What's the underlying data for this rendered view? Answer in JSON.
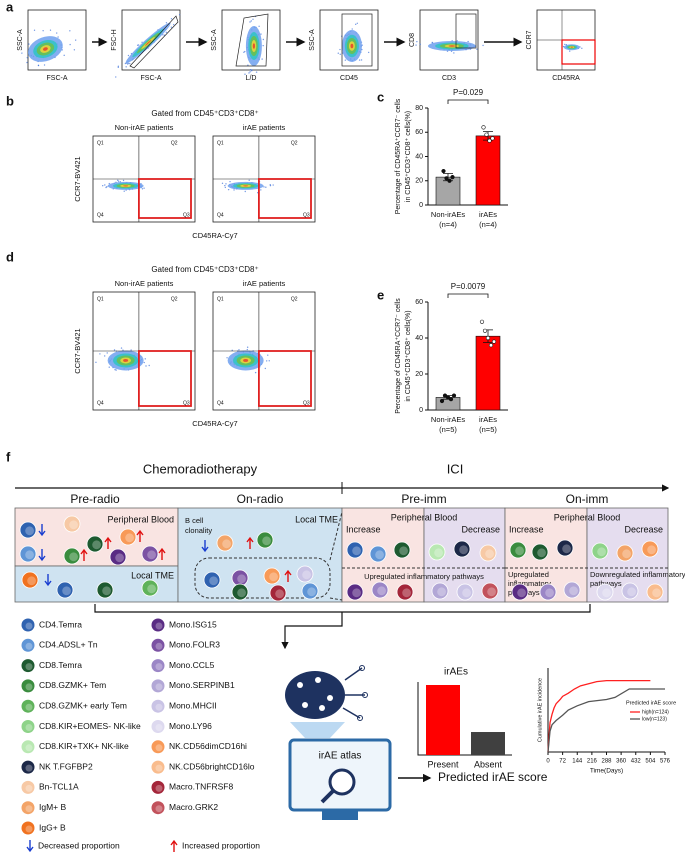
{
  "panel_a": {
    "label": "a",
    "plots": [
      {
        "x_label": "FSC-A",
        "y_label": "SSC-A"
      },
      {
        "x_label": "FSC-A",
        "y_label": "FSC-H"
      },
      {
        "x_label": "L/D",
        "y_label": "SSC-A"
      },
      {
        "x_label": "CD45",
        "y_label": "SSC-A"
      },
      {
        "x_label": "CD3",
        "y_label": "CD8"
      },
      {
        "x_label": "CD45RA",
        "y_label": "CCR7"
      }
    ]
  },
  "panel_b": {
    "label": "b",
    "gate_title": "Gated from CD45⁺CD3⁺CD8⁺",
    "groups": [
      "Non-irAE patients",
      "irAE patients"
    ],
    "y_label": "CCR7-BV421",
    "x_label": "CD45RA-Cy7",
    "quadrants": [
      "Q1",
      "Q2",
      "Q4",
      "Q3"
    ]
  },
  "panel_c": {
    "type": "bar",
    "label": "c",
    "p_value": "P=0.029",
    "y_label": [
      "Percentage of CD45RA⁺CCR7⁻ cells",
      "in CD45⁺CD3⁺CD8⁺ cells(%)"
    ],
    "categories": [
      [
        "Non-irAEs",
        "(n=4)"
      ],
      [
        "irAEs",
        "(n=4)"
      ]
    ],
    "values": [
      23,
      57
    ],
    "errors": [
      3,
      3.5
    ],
    "points": [
      [
        28,
        22,
        20,
        23
      ],
      [
        64,
        58,
        53,
        55
      ]
    ],
    "colors": [
      "#a6a6a6",
      "#ff0000"
    ],
    "ylim": [
      0,
      80
    ],
    "yticks": [
      0,
      20,
      40,
      60,
      80
    ]
  },
  "panel_d": {
    "label": "d",
    "gate_title": "Gated from CD45⁺CD3⁺CD8⁺",
    "groups": [
      "Non-irAE patients",
      "irAE patients"
    ],
    "y_label": "CCR7-BV421",
    "x_label": "CD45RA-Cy7",
    "quadrants": [
      "Q1",
      "Q2",
      "Q4",
      "Q3"
    ]
  },
  "panel_e": {
    "type": "bar",
    "label": "e",
    "p_value": "P=0.0079",
    "y_label": [
      "Percentage of CD45RA⁺CCR7⁻ cells",
      "in CD45⁺CD3⁺CD8⁺ cells(%)"
    ],
    "categories": [
      [
        "Non-irAEs",
        "(n=5)"
      ],
      [
        "irAEs",
        "(n=5)"
      ]
    ],
    "values": [
      7,
      41
    ],
    "errors": [
      1,
      3.5
    ],
    "points": [
      [
        5,
        8,
        7,
        6,
        8
      ],
      [
        49,
        44,
        40,
        36,
        38
      ]
    ],
    "colors": [
      "#a6a6a6",
      "#ff0000"
    ],
    "ylim": [
      0,
      60
    ],
    "yticks": [
      0,
      20,
      40,
      60
    ]
  },
  "panel_f": {
    "label": "f",
    "phases": [
      "Chemoradiotherapy",
      "ICI"
    ],
    "stages": [
      "Pre-radio",
      "On-radio",
      "Pre-imm",
      "On-imm"
    ],
    "pre_radio": {
      "top": "Peripheral Blood",
      "bottom": "Local TME"
    },
    "on_radio": {
      "note": [
        "B cell",
        "clonality"
      ],
      "title": "Local TME"
    },
    "pre_imm": {
      "title": "Peripheral Blood",
      "left": "Increase",
      "right": "Decrease",
      "bottom": "Upregulated inflammatory pathways"
    },
    "on_imm": {
      "title": "Peripheral Blood",
      "left": "Increase",
      "right": "Decrease",
      "bottom_left": [
        "Upregulated",
        "inflammatory",
        "pathways"
      ],
      "bottom_right": [
        "Downregulated inflammatory",
        "pathways"
      ]
    },
    "legend": [
      {
        "name": "CD4.Temra",
        "color": "#2f62b0"
      },
      {
        "name": "CD4.ADSL+ Tn",
        "color": "#5f95d6"
      },
      {
        "name": "CD8.Temra",
        "color": "#1e5a30"
      },
      {
        "name": "CD8.GZMK+ Tem",
        "color": "#3a8c3e"
      },
      {
        "name": "CD8.GZMK+ early Tem",
        "color": "#5fb25a"
      },
      {
        "name": "CD8.KIR+EOMES- NK-like",
        "color": "#8ed389"
      },
      {
        "name": "CD8.KIR+TXK+ NK-like",
        "color": "#b9e8b2"
      },
      {
        "name": "NK T.FGFBP2",
        "color": "#1c2848"
      },
      {
        "name": "Bn-TCL1A",
        "color": "#f7c9a5"
      },
      {
        "name": "IgM+ B",
        "color": "#f3a468"
      },
      {
        "name": "IgG+ B",
        "color": "#f07220"
      },
      {
        "name": "Mono.ISG15",
        "color": "#5a2c84"
      },
      {
        "name": "Mono.FOLR3",
        "color": "#7b52a3"
      },
      {
        "name": "Mono.CCL5",
        "color": "#9b86c6"
      },
      {
        "name": "Mono.SERPINB1",
        "color": "#b2a7d6"
      },
      {
        "name": "Mono.MHCII",
        "color": "#c9c3e5"
      },
      {
        "name": "Mono.LY96",
        "color": "#ddd9ef"
      },
      {
        "name": "NK.CD56dimCD16hi",
        "color": "#f89a58"
      },
      {
        "name": "NK.CD56brightCD16lo",
        "color": "#f9bc8d"
      },
      {
        "name": "Macro.TNFRSF8",
        "color": "#a4263a"
      },
      {
        "name": "Macro.GRK2",
        "color": "#c2525c"
      }
    ],
    "arrow_legend": [
      "Decreased proportion",
      "Increased proportion"
    ],
    "atlas": "irAE atlas",
    "output": "Predicted irAE score",
    "irae_bar": {
      "type": "bar",
      "title": "irAEs",
      "categories": [
        "Present",
        "Absent"
      ],
      "values": [
        67,
        22
      ],
      "color": "#ff0000",
      "color2": "#404040"
    },
    "km": {
      "type": "line",
      "y_label": "Cumulative irAE incidence",
      "x_label": "Time(Days)",
      "xlim": [
        0,
        576
      ],
      "xticks": [
        0,
        72,
        144,
        216,
        288,
        360,
        432,
        504,
        576
      ],
      "ylim": [
        0,
        0.8
      ],
      "legend_title": "Predicted irAE score",
      "series": [
        {
          "name": "high(n=124)",
          "color": "#ff2020",
          "x": [
            0,
            5,
            10,
            20,
            30,
            40,
            60,
            72,
            100,
            130,
            160,
            200,
            240,
            288,
            330,
            504
          ],
          "values": [
            0,
            0.15,
            0.28,
            0.36,
            0.42,
            0.46,
            0.5,
            0.53,
            0.56,
            0.6,
            0.63,
            0.65,
            0.67,
            0.68,
            0.68,
            0.68
          ]
        },
        {
          "name": "low(n=123)",
          "color": "#555555",
          "x": [
            0,
            5,
            10,
            20,
            40,
            72,
            100,
            144,
            200,
            288,
            330,
            400,
            432,
            576
          ],
          "values": [
            0,
            0.1,
            0.2,
            0.26,
            0.3,
            0.35,
            0.4,
            0.44,
            0.48,
            0.5,
            0.52,
            0.6,
            0.6,
            0.6
          ]
        }
      ]
    }
  }
}
